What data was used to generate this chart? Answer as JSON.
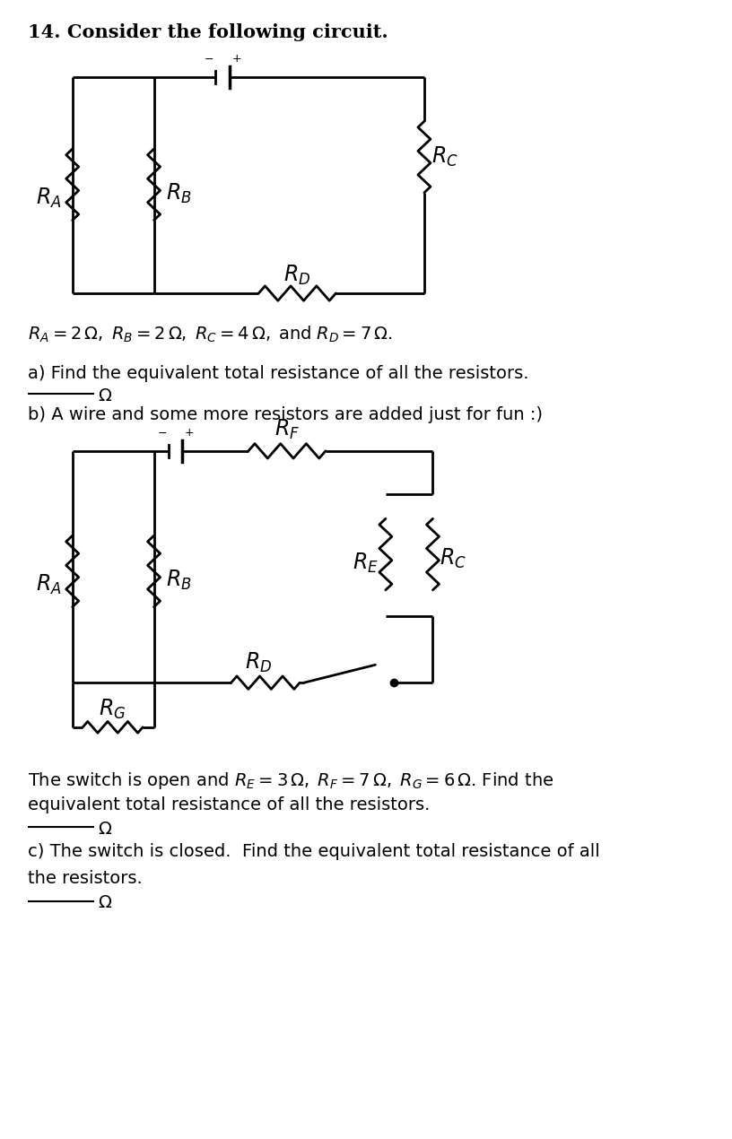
{
  "background_color": "#ffffff",
  "fig_width": 8.16,
  "fig_height": 12.7,
  "title": "14. Consider the following circuit.",
  "params_line1": "$R_A = 2\\,\\Omega,\\; R_B = 2\\,\\Omega,\\; R_C = 4\\,\\Omega,\\; \\mathrm{and}\\; R_D = 7\\,\\Omega.$",
  "part_a": "a) Find the equivalent total resistance of all the resistors.",
  "part_b": "b) A wire and some more resistors are added just for fun :)",
  "params_line2a": "The switch is open and $R_E = 3\\,\\Omega,\\; R_F = 7\\,\\Omega,\\; R_G = 6\\,\\Omega$. Find the",
  "params_line2b": "equivalent total resistance of all the resistors.",
  "part_c1": "c) The switch is closed.  Find the equivalent total resistance of all",
  "part_c2": "the resistors.",
  "omega": "$\\Omega$"
}
